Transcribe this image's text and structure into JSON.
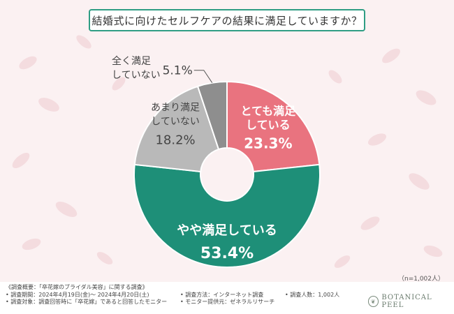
{
  "title": "結婚式に向けたセルフケアの結果に満足していますか？",
  "sample_size": "（n=1,002人）",
  "colors": {
    "accent": "#2f9d84",
    "very_satisfied": "#e9737f",
    "somewhat_satisfied": "#1e8f78",
    "not_really": "#b9b9b9",
    "not_at_all": "#8e8e8e"
  },
  "chart_data": {
    "type": "pie",
    "title": "結婚式に向けたセルフケアの結果に満足していますか？",
    "slices": [
      {
        "label_lines": [
          "とても満足",
          "している"
        ],
        "value": 23.3,
        "value_label": "23.3%",
        "color": "#e9737f"
      },
      {
        "label_lines": [
          "やや満足している"
        ],
        "value": 53.4,
        "value_label": "53.4%",
        "color": "#1e8f78"
      },
      {
        "label_lines": [
          "あまり満足",
          "していない"
        ],
        "value": 18.2,
        "value_label": "18.2%",
        "color": "#b9b9b9"
      },
      {
        "label_lines": [
          "全く満足",
          "していない"
        ],
        "value": 5.1,
        "value_label": "5.1%",
        "color": "#8e8e8e"
      }
    ]
  },
  "footer": {
    "col1": [
      "《調査概要：「卒花嫁のブライダル美容」に関する調査》",
      "• 調査期間：2024年4月19日(金)～ 2024年4月20日(土)",
      "• 調査対象：調査回答時に「卒花嫁」であると回答したモニター"
    ],
    "col2": [
      "• 調査方法：インターネット調査",
      "• モニター提供元：ゼネラルリサーチ"
    ],
    "col3": [
      "• 調査人数：1,002人"
    ],
    "brand": "BOTANICAL PEEL",
    "brand_logo_icon": "botanical-leaf-logo-icon"
  }
}
